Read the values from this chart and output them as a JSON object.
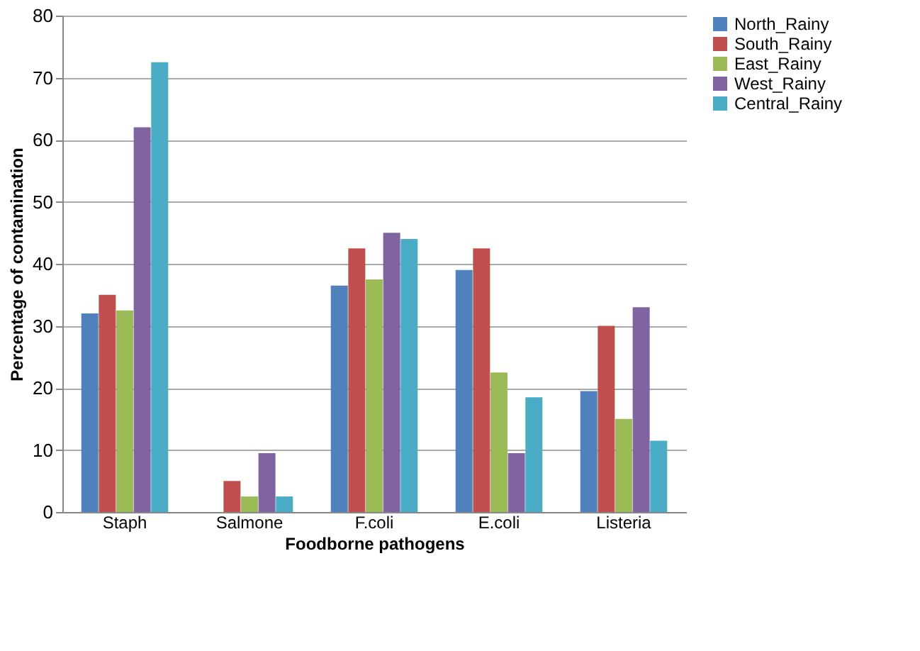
{
  "chart_data": {
    "type": "bar",
    "xlabel": "Foodborne pathogens",
    "ylabel": "Percentage of contamination",
    "categories": [
      "Staph",
      "Salmone",
      "F.coli",
      "E.coli",
      "Listeria"
    ],
    "series": [
      {
        "name": "North_Rainy",
        "color": "#4f81bd",
        "values": [
          32,
          0,
          36.5,
          39,
          19.5
        ]
      },
      {
        "name": "South_Rainy",
        "color": "#c0504d",
        "values": [
          35,
          5,
          42.5,
          42.5,
          30
        ]
      },
      {
        "name": "East_Rainy",
        "color": "#9bbb59",
        "values": [
          32.5,
          2.5,
          37.5,
          22.5,
          15
        ]
      },
      {
        "name": "West_Rainy",
        "color": "#8064a2",
        "values": [
          62,
          9.5,
          45,
          9.5,
          33
        ]
      },
      {
        "name": "Central_Rainy",
        "color": "#4bacc6",
        "values": [
          72.5,
          2.5,
          44,
          18.5,
          11.5
        ]
      }
    ],
    "ylim": [
      0,
      80
    ],
    "yticks": [
      0,
      10,
      20,
      30,
      40,
      50,
      60,
      70,
      80
    ],
    "grid": "y",
    "legend": "right"
  }
}
